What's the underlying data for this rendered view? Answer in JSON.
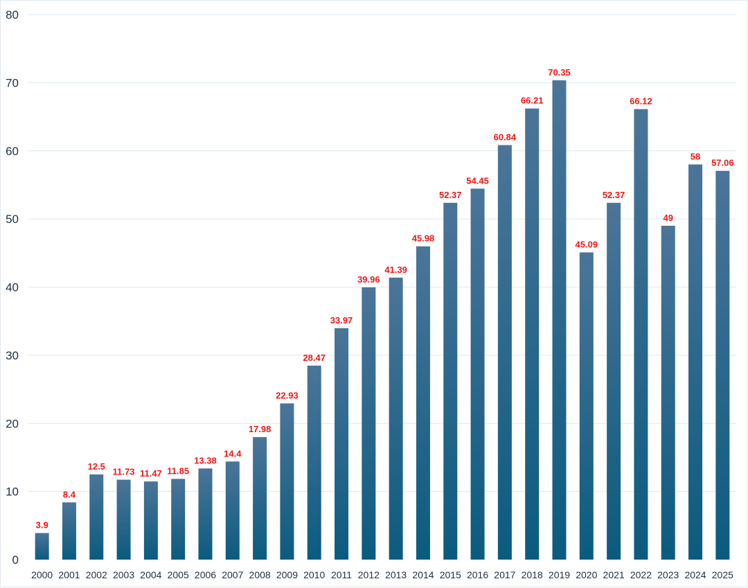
{
  "chart_data": {
    "type": "bar",
    "title": "",
    "xlabel": "",
    "ylabel": "",
    "categories": [
      "2000",
      "2001",
      "2002",
      "2003",
      "2004",
      "2005",
      "2006",
      "2007",
      "2008",
      "2009",
      "2010",
      "2011",
      "2012",
      "2013",
      "2014",
      "2015",
      "2016",
      "2017",
      "2018",
      "2019",
      "2020",
      "2021",
      "2022",
      "2023",
      "2024",
      "2025"
    ],
    "values": [
      3.9,
      8.4,
      12.5,
      11.73,
      11.47,
      11.85,
      13.38,
      14.4,
      17.98,
      22.93,
      28.47,
      33.97,
      39.96,
      41.39,
      45.98,
      52.37,
      54.45,
      60.84,
      66.21,
      70.35,
      45.09,
      52.37,
      66.12,
      49,
      58,
      57.06
    ],
    "value_labels": [
      "3.9",
      "8.4",
      "12.5",
      "11.73",
      "11.47",
      "11.85",
      "13.38",
      "14.4",
      "17.98",
      "22.93",
      "28.47",
      "33.97",
      "39.96",
      "41.39",
      "45.98",
      "52.37",
      "54.45",
      "60.84",
      "66.21",
      "70.35",
      "45.09",
      "52.37",
      "66.12",
      "49",
      "58",
      "57.06"
    ],
    "ylim": [
      0,
      80
    ],
    "yticks": [
      0,
      10,
      20,
      30,
      40,
      50,
      60,
      70,
      80
    ],
    "ytick_labels": [
      "0",
      "10",
      "20",
      "30",
      "40",
      "50",
      "60",
      "70",
      "80"
    ],
    "grid": true,
    "colors": {
      "bar_top": "#4b7599",
      "bar_bottom": "#0b5b7f",
      "label": "#ef1717",
      "tick": "#1f2f44",
      "grid": "#dce8f3"
    }
  }
}
